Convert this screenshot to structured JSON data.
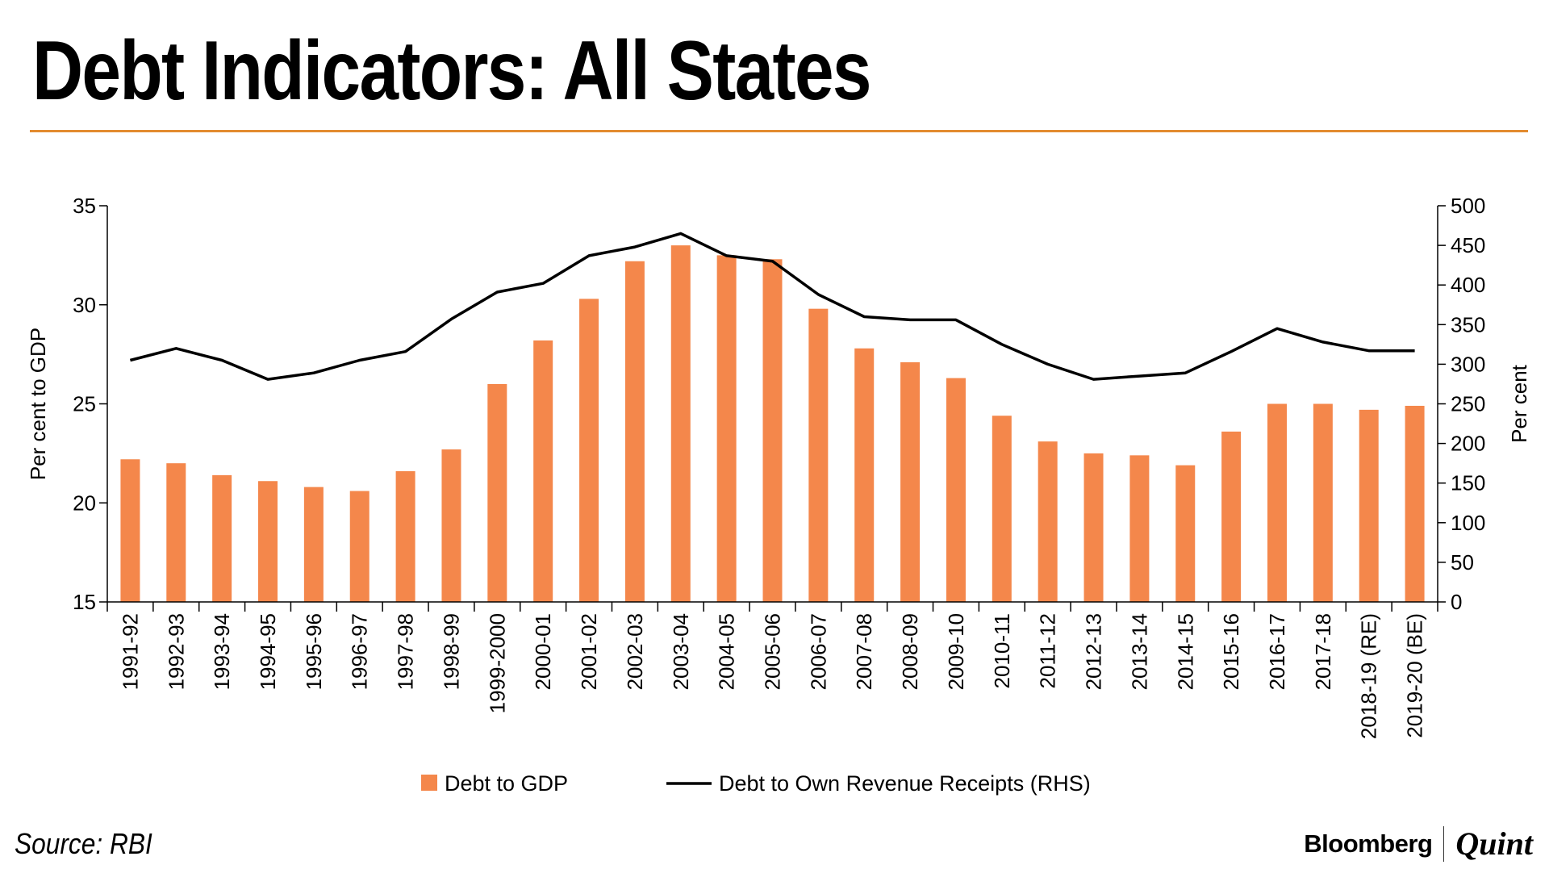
{
  "title": "Debt Indicators: All States",
  "source": "Source: RBI",
  "brand": {
    "primary": "Bloomberg",
    "secondary": "Quint"
  },
  "colors": {
    "bar": "#f4874b",
    "line": "#000000",
    "accent_rule": "#e38b2f"
  },
  "chart_data": {
    "type": "bar+line",
    "categories": [
      "1991-92",
      "1992-93",
      "1993-94",
      "1994-95",
      "1995-96",
      "1996-97",
      "1997-98",
      "1998-99",
      "1999-2000",
      "2000-01",
      "2001-02",
      "2002-03",
      "2003-04",
      "2004-05",
      "2005-06",
      "2006-07",
      "2007-08",
      "2008-09",
      "2009-10",
      "2010-11",
      "2011-12",
      "2012-13",
      "2013-14",
      "2014-15",
      "2015-16",
      "2016-17",
      "2017-18",
      "2018-19 (RE)",
      "2019-20 (BE)"
    ],
    "series": [
      {
        "name": "Debt to GDP",
        "type": "bar",
        "axis": "left",
        "values": [
          22.2,
          22.0,
          21.4,
          21.1,
          20.8,
          20.6,
          21.6,
          22.7,
          26.0,
          28.2,
          30.3,
          32.2,
          33.0,
          32.5,
          32.3,
          29.8,
          27.8,
          27.1,
          26.3,
          24.4,
          23.1,
          22.5,
          22.4,
          21.9,
          23.6,
          25.0,
          25.0,
          24.7,
          24.9
        ]
      },
      {
        "name": "Debt to Own Revenue Receipts (RHS)",
        "type": "line",
        "axis": "right",
        "values": [
          305,
          320,
          305,
          281,
          289,
          305,
          316,
          357,
          391,
          402,
          437,
          448,
          465,
          437,
          430,
          388,
          360,
          356,
          356,
          325,
          300,
          281,
          285,
          289,
          316,
          345,
          328,
          317,
          317
        ]
      }
    ],
    "y_left": {
      "label": "Per cent to GDP",
      "min": 15,
      "max": 35,
      "ticks": [
        15,
        20,
        25,
        30,
        35
      ]
    },
    "y_right": {
      "label": "Per cent",
      "min": 0,
      "max": 500,
      "ticks": [
        0,
        50,
        100,
        150,
        200,
        250,
        300,
        350,
        400,
        450,
        500
      ]
    },
    "legend": {
      "position": "bottom"
    },
    "grid": false
  }
}
